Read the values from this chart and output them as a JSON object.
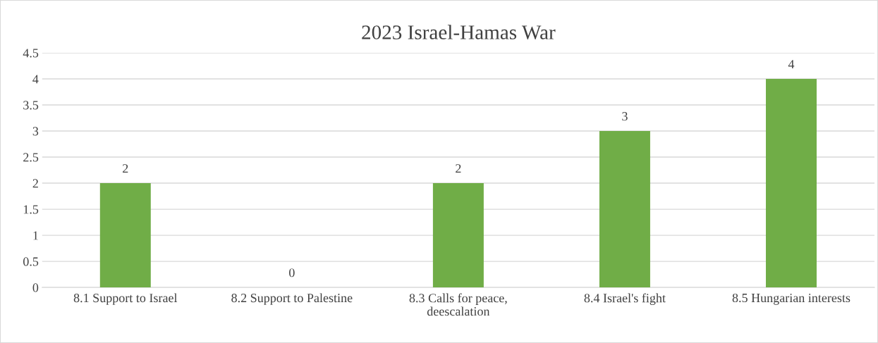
{
  "chart_data": {
    "type": "bar",
    "title": "2023 Israel-Hamas War",
    "categories": [
      "8.1 Support to Israel",
      "8.2 Support to Palestine",
      "8.3 Calls for peace,\ndeescalation",
      "8.4 Israel's fight",
      "8.5 Hungarian interests"
    ],
    "values": [
      2,
      0,
      2,
      3,
      4
    ],
    "color": "#70ad47",
    "ylim": [
      0,
      4.5
    ],
    "yticks": [
      0,
      0.5,
      1,
      1.5,
      2,
      2.5,
      3,
      3.5,
      4,
      4.5
    ],
    "grid": "y",
    "data_labels": true,
    "legend": false
  }
}
